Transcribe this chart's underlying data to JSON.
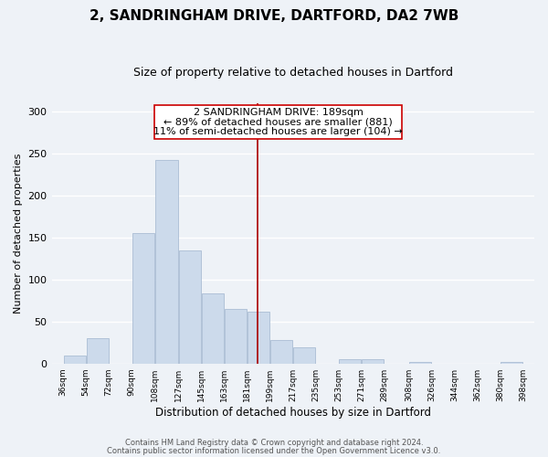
{
  "title1": "2, SANDRINGHAM DRIVE, DARTFORD, DA2 7WB",
  "title2": "Size of property relative to detached houses in Dartford",
  "xlabel": "Distribution of detached houses by size in Dartford",
  "ylabel": "Number of detached properties",
  "bar_left_edges": [
    36,
    54,
    72,
    90,
    108,
    127,
    145,
    163,
    181,
    199,
    217,
    235,
    253,
    271,
    289,
    308,
    326,
    344,
    362,
    380
  ],
  "bar_widths": [
    18,
    18,
    18,
    18,
    19,
    18,
    18,
    18,
    18,
    18,
    18,
    18,
    18,
    18,
    19,
    18,
    18,
    18,
    18,
    18
  ],
  "bar_heights": [
    9,
    30,
    0,
    155,
    242,
    135,
    83,
    65,
    62,
    28,
    19,
    0,
    5,
    5,
    0,
    2,
    0,
    0,
    0,
    2
  ],
  "bar_color": "#ccdaeb",
  "bar_edgecolor": "#aabdd4",
  "vline_x": 189,
  "vline_color": "#aa0000",
  "annotation_line1": "2 SANDRINGHAM DRIVE: 189sqm",
  "annotation_line2": "← 89% of detached houses are smaller (881)",
  "annotation_line3": "11% of semi-detached houses are larger (104) →",
  "annotation_fontsize": 8,
  "tick_labels": [
    "36sqm",
    "54sqm",
    "72sqm",
    "90sqm",
    "108sqm",
    "127sqm",
    "145sqm",
    "163sqm",
    "181sqm",
    "199sqm",
    "217sqm",
    "235sqm",
    "253sqm",
    "271sqm",
    "289sqm",
    "308sqm",
    "326sqm",
    "344sqm",
    "362sqm",
    "380sqm",
    "398sqm"
  ],
  "tick_positions": [
    36,
    54,
    72,
    90,
    108,
    127,
    145,
    163,
    181,
    199,
    217,
    235,
    253,
    271,
    289,
    308,
    326,
    344,
    362,
    380,
    398
  ],
  "ylim": [
    0,
    310
  ],
  "xlim": [
    27,
    407
  ],
  "yticks": [
    0,
    50,
    100,
    150,
    200,
    250,
    300
  ],
  "background_color": "#eef2f7",
  "grid_color": "#ffffff",
  "footer1": "Contains HM Land Registry data © Crown copyright and database right 2024.",
  "footer2": "Contains public sector information licensed under the Open Government Licence v3.0."
}
